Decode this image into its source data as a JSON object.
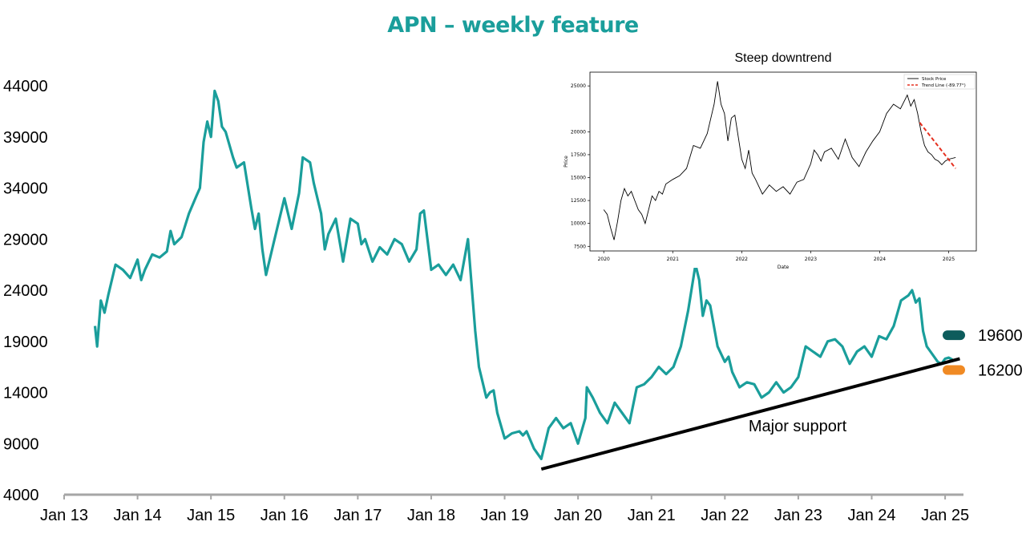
{
  "title": "APN – weekly feature",
  "colors": {
    "title": "#1a9e9b",
    "series": "#1a9e9b",
    "support_line": "#000000",
    "axis": "#a6a6a6",
    "marker_19600": "#0d5c5c",
    "marker_16200": "#f08a24"
  },
  "chart_data": [
    {
      "type": "line",
      "title": "",
      "xlabel": "",
      "ylabel": "",
      "ylim": [
        4000,
        46000
      ],
      "xlim": [
        2013.0,
        2025.25
      ],
      "y_ticks": [
        4000,
        9000,
        14000,
        19000,
        24000,
        29000,
        34000,
        39000,
        44000
      ],
      "y_tick_labels": [
        "4000",
        "9000",
        "14000",
        "19000",
        "24000",
        "29000",
        "34000",
        "39000",
        "44000"
      ],
      "x_ticks": [
        2013,
        2014,
        2015,
        2016,
        2017,
        2018,
        2019,
        2020,
        2021,
        2022,
        2023,
        2024,
        2025
      ],
      "x_tick_labels": [
        "Jan 13",
        "Jan 14",
        "Jan 15",
        "Jan 16",
        "Jan 17",
        "Jan 18",
        "Jan 19",
        "Jan 20",
        "Jan 21",
        "Jan 22",
        "Jan 23",
        "Jan 24",
        "Jan 25"
      ],
      "grid": false,
      "series": [
        {
          "name": "",
          "x": [
            2013.42,
            2013.45,
            2013.5,
            2013.55,
            2013.6,
            2013.7,
            2013.8,
            2013.9,
            2014.0,
            2014.05,
            2014.1,
            2014.2,
            2014.3,
            2014.4,
            2014.45,
            2014.5,
            2014.6,
            2014.7,
            2014.8,
            2014.85,
            2014.9,
            2014.95,
            2015.0,
            2015.05,
            2015.1,
            2015.15,
            2015.2,
            2015.3,
            2015.35,
            2015.45,
            2015.55,
            2015.6,
            2015.65,
            2015.7,
            2015.75,
            2015.85,
            2015.95,
            2016.0,
            2016.1,
            2016.2,
            2016.25,
            2016.35,
            2016.4,
            2016.5,
            2016.55,
            2016.6,
            2016.7,
            2016.8,
            2016.9,
            2017.0,
            2017.05,
            2017.1,
            2017.2,
            2017.3,
            2017.4,
            2017.5,
            2017.6,
            2017.7,
            2017.8,
            2017.85,
            2017.9,
            2018.0,
            2018.1,
            2018.2,
            2018.3,
            2018.4,
            2018.5,
            2018.6,
            2018.65,
            2018.7,
            2018.75,
            2018.8,
            2018.85,
            2018.9,
            2019.0,
            2019.1,
            2019.2,
            2019.25,
            2019.3,
            2019.4,
            2019.5,
            2019.55,
            2019.6,
            2019.7,
            2019.8,
            2019.9,
            2020.0,
            2020.1,
            2020.12,
            2020.2,
            2020.3,
            2020.4,
            2020.5,
            2020.6,
            2020.7,
            2020.8,
            2020.9,
            2021.0,
            2021.1,
            2021.2,
            2021.3,
            2021.4,
            2021.5,
            2021.6,
            2021.65,
            2021.7,
            2021.75,
            2021.8,
            2021.9,
            2022.0,
            2022.05,
            2022.1,
            2022.2,
            2022.3,
            2022.4,
            2022.5,
            2022.6,
            2022.7,
            2022.8,
            2022.9,
            2023.0,
            2023.1,
            2023.2,
            2023.3,
            2023.4,
            2023.5,
            2023.6,
            2023.7,
            2023.8,
            2023.9,
            2024.0,
            2024.1,
            2024.2,
            2024.3,
            2024.4,
            2024.5,
            2024.55,
            2024.6,
            2024.65,
            2024.7,
            2024.75,
            2024.8,
            2024.9,
            2024.95,
            2025.0,
            2025.05,
            2025.1
          ],
          "y": [
            20500,
            18500,
            23000,
            21800,
            23500,
            26500,
            26000,
            25200,
            27000,
            25000,
            26000,
            27500,
            27200,
            27800,
            29800,
            28500,
            29200,
            31500,
            33200,
            34000,
            38500,
            40500,
            39000,
            43500,
            42500,
            40000,
            39500,
            37000,
            36000,
            36500,
            32000,
            30000,
            31500,
            28000,
            25500,
            28500,
            31500,
            33000,
            30000,
            33500,
            37000,
            36500,
            34500,
            31500,
            28000,
            29500,
            31000,
            26800,
            31000,
            30500,
            28500,
            29000,
            26800,
            28200,
            27500,
            29000,
            28500,
            26800,
            28000,
            31500,
            31800,
            26000,
            26500,
            25500,
            26500,
            25000,
            29000,
            20000,
            16500,
            15000,
            13500,
            14000,
            14200,
            12000,
            9500,
            10000,
            10200,
            9800,
            10200,
            8500,
            7500,
            9000,
            10500,
            11500,
            10500,
            11000,
            9000,
            11500,
            14500,
            13500,
            12000,
            11000,
            13000,
            12000,
            11000,
            14500,
            14800,
            15500,
            16500,
            15800,
            16500,
            18500,
            22000,
            26500,
            25000,
            21500,
            23000,
            22500,
            18500,
            17000,
            17500,
            16000,
            14500,
            15000,
            14800,
            13500,
            14000,
            15000,
            14000,
            14500,
            15500,
            18500,
            18000,
            17500,
            19000,
            19200,
            18500,
            16800,
            18000,
            18500,
            17500,
            19500,
            19200,
            20500,
            23000,
            23500,
            24000,
            22800,
            23200,
            20000,
            18500,
            18000,
            17000,
            16800,
            17300,
            17400,
            17200
          ]
        }
      ],
      "support_line": {
        "label": "Major support",
        "from": [
          2019.5,
          6500
        ],
        "to": [
          2025.2,
          17300
        ]
      },
      "levels": [
        {
          "label": "19600",
          "value": 19600,
          "color": "#0d5c5c"
        },
        {
          "label": "16200",
          "value": 16200,
          "color": "#f08a24"
        }
      ]
    },
    {
      "type": "line",
      "title": "Steep downtrend",
      "xlabel": "Date",
      "ylabel": "Price",
      "xlim": [
        2019.8,
        2025.4
      ],
      "ylim": [
        7000,
        26500
      ],
      "x_ticks": [
        2020,
        2021,
        2022,
        2023,
        2024,
        2025
      ],
      "x_tick_labels": [
        "2020",
        "2021",
        "2022",
        "2023",
        "2024",
        "2025"
      ],
      "y_ticks": [
        7500,
        10000,
        12500,
        15000,
        17500,
        20000,
        25000
      ],
      "y_tick_labels": [
        "7500",
        "10000",
        "12500",
        "15000",
        "17500",
        "20000",
        "25000"
      ],
      "legend": [
        "Stock Price",
        "Trend Line (-89.77°)"
      ],
      "legend_position": "top-right",
      "series": [
        {
          "name": "Stock Price",
          "x": [
            2020.0,
            2020.05,
            2020.1,
            2020.15,
            2020.2,
            2020.25,
            2020.3,
            2020.35,
            2020.4,
            2020.45,
            2020.5,
            2020.55,
            2020.6,
            2020.7,
            2020.75,
            2020.8,
            2020.85,
            2020.9,
            2021.0,
            2021.1,
            2021.2,
            2021.3,
            2021.4,
            2021.5,
            2021.6,
            2021.65,
            2021.7,
            2021.75,
            2021.8,
            2021.85,
            2021.9,
            2022.0,
            2022.05,
            2022.1,
            2022.15,
            2022.2,
            2022.3,
            2022.4,
            2022.5,
            2022.6,
            2022.7,
            2022.8,
            2022.9,
            2023.0,
            2023.05,
            2023.1,
            2023.15,
            2023.2,
            2023.3,
            2023.4,
            2023.5,
            2023.6,
            2023.7,
            2023.8,
            2023.9,
            2024.0,
            2024.1,
            2024.2,
            2024.3,
            2024.4,
            2024.45,
            2024.5,
            2024.55,
            2024.6,
            2024.65,
            2024.7,
            2024.75,
            2024.8,
            2024.85,
            2024.9,
            2024.95,
            2025.0,
            2025.05,
            2025.1
          ],
          "y": [
            11500,
            11000,
            9500,
            8200,
            10200,
            12500,
            13800,
            13000,
            13500,
            12500,
            11500,
            11000,
            10000,
            13000,
            12500,
            13500,
            13200,
            14300,
            14800,
            15200,
            16000,
            18500,
            18200,
            19800,
            23000,
            25500,
            23000,
            22000,
            19000,
            21500,
            21800,
            17000,
            16000,
            18000,
            15500,
            14800,
            13200,
            14200,
            13500,
            14000,
            13200,
            14500,
            14800,
            16500,
            18000,
            17500,
            16800,
            17800,
            18200,
            17000,
            19200,
            17200,
            16200,
            17800,
            19000,
            20000,
            22000,
            23000,
            22500,
            24000,
            22800,
            23500,
            22000,
            20000,
            18500,
            17800,
            17500,
            17000,
            16800,
            16400,
            16800,
            17000,
            17100,
            17200
          ]
        },
        {
          "name": "Trend Line (-89.77°)",
          "x": [
            2024.58,
            2025.1
          ],
          "y": [
            21000,
            16000
          ]
        }
      ]
    }
  ]
}
